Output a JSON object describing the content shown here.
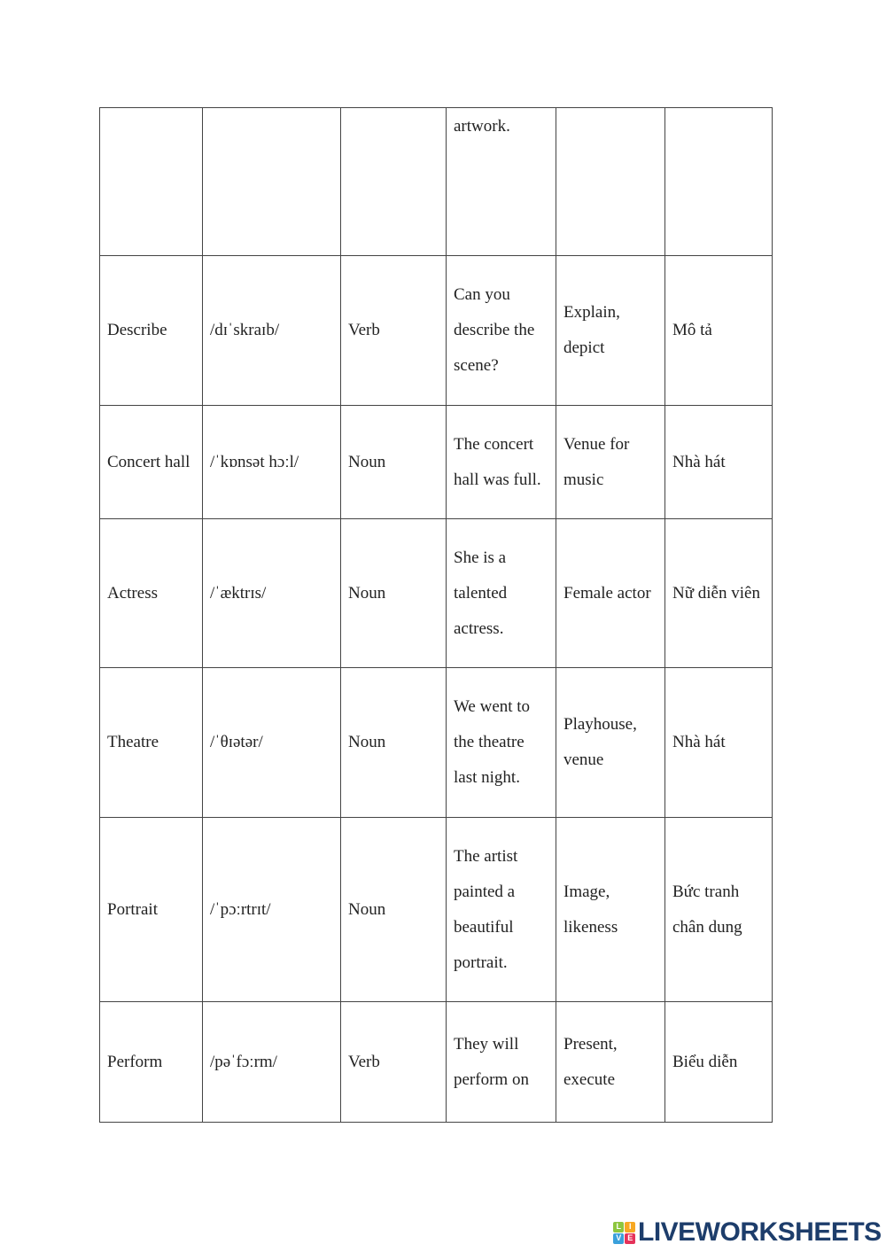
{
  "rows": [
    {
      "word": "",
      "ipa": "",
      "type": "",
      "example": "artwork.",
      "synonym": "",
      "meaning": ""
    },
    {
      "word": "Describe",
      "ipa": "/dɪˈskraɪb/",
      "type": "Verb",
      "example": "Can you describe the scene?",
      "synonym": "Explain, depict",
      "meaning": "Mô tả"
    },
    {
      "word": "Concert hall",
      "ipa": "/ˈkɒnsət hɔːl/",
      "type": "Noun",
      "example": "The concert hall was full.",
      "synonym": "Venue for music",
      "meaning": "Nhà hát"
    },
    {
      "word": "Actress",
      "ipa": "/ˈæktrɪs/",
      "type": "Noun",
      "example": "She is a talented actress.",
      "synonym": "Female actor",
      "meaning": "Nữ diễn viên"
    },
    {
      "word": "Theatre",
      "ipa": "/ˈθɪətər/",
      "type": "Noun",
      "example": "We went to the theatre last night.",
      "synonym": "Playhouse, venue",
      "meaning": "Nhà hát"
    },
    {
      "word": "Portrait",
      "ipa": "/ˈpɔːrtrɪt/",
      "type": "Noun",
      "example": "The artist painted a beautiful portrait.",
      "synonym": "Image, likeness",
      "meaning": "Bức tranh chân dung"
    },
    {
      "word": "Perform",
      "ipa": "/pəˈfɔːrm/",
      "type": "Verb",
      "example": "They will perform on",
      "synonym": "Present, execute",
      "meaning": "Biểu diễn"
    }
  ],
  "logo": {
    "text": "LIVEWORKSHEETS",
    "letters": [
      "L",
      "I",
      "V",
      "E"
    ],
    "colors": [
      "#8dc63f",
      "#f7a823",
      "#3aa0db",
      "#e5325a"
    ]
  }
}
